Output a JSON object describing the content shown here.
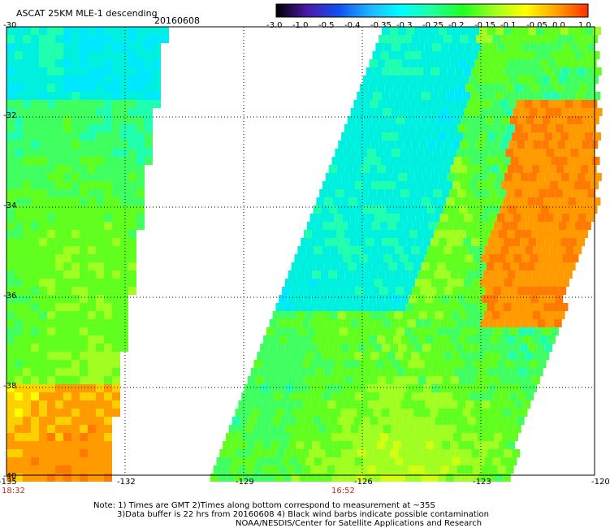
{
  "header": {
    "title": "ASCAT 25KM MLE-1 descending",
    "date": "20160608"
  },
  "colorbar": {
    "labels": [
      "-3.0",
      "-1.0",
      "-0.5",
      "-0.4",
      "-0.35",
      "-0.3",
      "-0.25",
      "-0.2",
      "-0.15",
      "-0.1",
      "-0.05",
      "0.0",
      "1.0"
    ],
    "colors": [
      "#000000",
      "#4a1aa6",
      "#1050f0",
      "#20b4ff",
      "#00ffff",
      "#20ffa0",
      "#20ff20",
      "#a0ff20",
      "#ffff00",
      "#ffa000",
      "#ff3000"
    ]
  },
  "axes": {
    "lat_labels": [
      "-30",
      "-32",
      "-34",
      "-36",
      "-38",
      "-40"
    ],
    "lon_labels": [
      "-135",
      "-132",
      "-129",
      "-126",
      "-123",
      "-120"
    ],
    "time_labels": [
      "18:32",
      "16:52"
    ]
  },
  "notes": {
    "line1": "Note: 1) Times are GMT 2)Times along bottom correspond to measurement at ~35S",
    "line2": "3)Data buffer is 22 hrs from 20160608 4) Black wind barbs indicate possible contamination",
    "line3": "NOAA/NESDIS/Center for Satellite Applications and Research"
  }
}
